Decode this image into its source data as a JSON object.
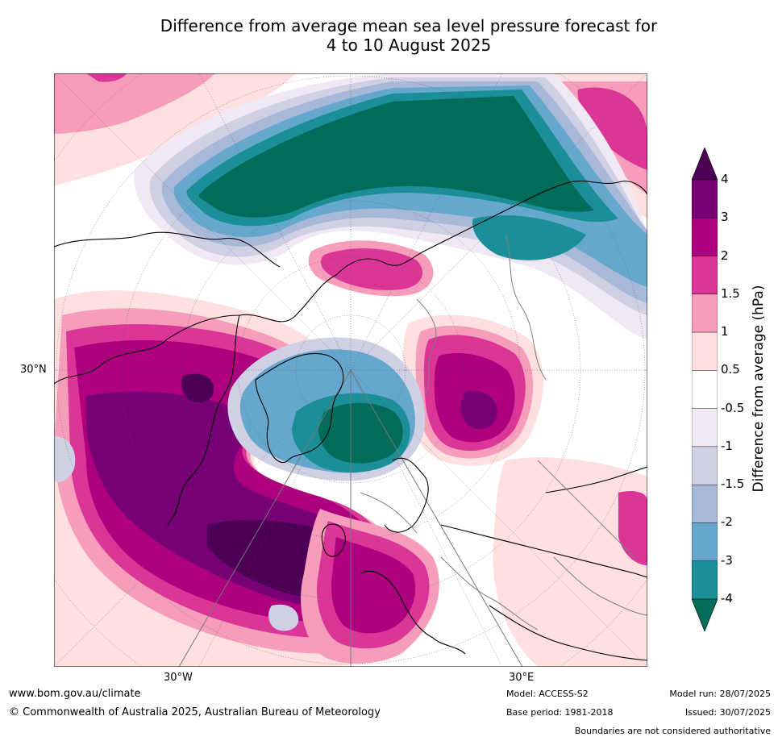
{
  "title_line1": "Difference from average mean sea level pressure forecast for",
  "title_line2": "4 to 10 August 2025",
  "map": {
    "lat_label": "30°N",
    "lon_label_left": "30°W",
    "lon_label_right": "30°E",
    "colors": {
      "ocean_white": "#ffffff",
      "coast": "#000000",
      "border": "#808080"
    }
  },
  "colorbar": {
    "title": "Difference from average (hPa)",
    "ticks": [
      "4",
      "3",
      "2",
      "1.5",
      "1",
      "0.5",
      "-0.5",
      "-1",
      "-1.5",
      "-2",
      "-3",
      "-4"
    ],
    "colors": [
      "#4b0055",
      "#760074",
      "#ad007f",
      "#dc3598",
      "#f59dbb",
      "#fde0df",
      "#ffffff",
      "#f0e9f3",
      "#d0d0e4",
      "#a8b8d8",
      "#66a8cd",
      "#1a8f98",
      "#016c59"
    ]
  },
  "footer": {
    "website": "www.bom.gov.au/climate",
    "copyright": "© Commonwealth of Australia 2025, Australian Bureau of Meteorology",
    "model": "Model: ACCESS-S2",
    "base_period": "Base period: 1981-2018",
    "model_run": "Model run: 28/07/2025",
    "issued": "Issued: 30/07/2025",
    "disclaimer": "Boundaries are not considered authoritative"
  }
}
